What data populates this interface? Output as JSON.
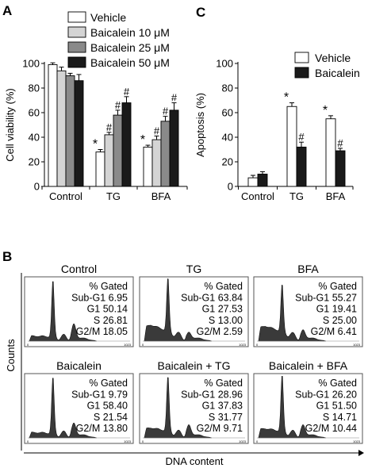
{
  "panels": {
    "a_letter": "A",
    "b_letter": "B",
    "c_letter": "C"
  },
  "chart_data": [
    {
      "id": "panel-a",
      "type": "bar",
      "ylabel": "Cell viability (%)",
      "xlabel": "",
      "ylim": [
        0,
        100
      ],
      "yticks": [
        0,
        20,
        40,
        60,
        80,
        100
      ],
      "categories": [
        "Control",
        "TG",
        "BFA"
      ],
      "legend_position": "top",
      "series": [
        {
          "name": "Vehicle",
          "color": "#ffffff",
          "values": [
            99,
            28,
            32
          ],
          "errors": [
            1.5,
            2,
            1.5
          ],
          "marks": [
            "",
            "*",
            "*"
          ]
        },
        {
          "name": "Baicalein 10 μM",
          "color": "#d4d4d4",
          "values": [
            94,
            42,
            38
          ],
          "errors": [
            3,
            2,
            3
          ],
          "marks": [
            "",
            "#",
            "#"
          ]
        },
        {
          "name": "Baicalein 25 μM",
          "color": "#8a8a8a",
          "values": [
            90,
            58,
            53
          ],
          "errors": [
            2,
            4,
            4
          ],
          "marks": [
            "",
            "#",
            "#"
          ]
        },
        {
          "name": "Baicalein 50 μM",
          "color": "#1a1a1a",
          "values": [
            86,
            68,
            62
          ],
          "errors": [
            5,
            5,
            6
          ],
          "marks": [
            "",
            "#",
            "#"
          ]
        }
      ]
    },
    {
      "id": "panel-c",
      "type": "bar",
      "ylabel": "Apoptosis (%)",
      "xlabel": "",
      "ylim": [
        0,
        100
      ],
      "yticks": [
        0,
        20,
        40,
        60,
        80,
        100
      ],
      "categories": [
        "Control",
        "TG",
        "BFA"
      ],
      "legend_position": "top-right",
      "series": [
        {
          "name": "Vehicle",
          "color": "#ffffff",
          "values": [
            7,
            65,
            55
          ],
          "errors": [
            2,
            3,
            2.5
          ],
          "marks": [
            "",
            "*",
            "*"
          ]
        },
        {
          "name": "Baicalein",
          "color": "#1a1a1a",
          "values": [
            10,
            32,
            29
          ],
          "errors": [
            2,
            4,
            2
          ],
          "marks": [
            "",
            "#",
            "#"
          ]
        }
      ]
    }
  ],
  "flow": {
    "ylabel": "Counts",
    "xlabel": "DNA content",
    "axis_tick_right": "1023",
    "axis_tick_left": "0",
    "gated_header": "% Gated",
    "histograms": [
      {
        "title": "Control",
        "subg1": "Sub-G1 6.95",
        "g1": "G1 50.14",
        "s": "S 26.81",
        "g2m": "G2/M 18.05",
        "g1_height": 0.95,
        "g2m_height": 0.22,
        "subg1_level": 0.04
      },
      {
        "title": "TG",
        "subg1": "Sub-G1 63.84",
        "g1": "G1 27.53",
        "s": "S 13.00",
        "g2m": "G2/M 2.59",
        "g1_height": 0.9,
        "g2m_height": 0.08,
        "subg1_level": 0.35
      },
      {
        "title": "BFA",
        "subg1": "Sub-G1 55.27",
        "g1": "G1 19.41",
        "s": "S 25.00",
        "g2m": "G2/M 6.41",
        "g1_height": 0.8,
        "g2m_height": 0.12,
        "subg1_level": 0.32
      },
      {
        "title": "Baicalein",
        "subg1": "Sub-G1 9.79",
        "g1": "G1 58.40",
        "s": "S 21.54",
        "g2m": "G2/M 13.80",
        "g1_height": 0.95,
        "g2m_height": 0.18,
        "subg1_level": 0.05
      },
      {
        "title": "Baicalein + TG",
        "subg1": "Sub-G1 28.96",
        "g1": "G1 37.83",
        "s": "S 31.77",
        "g2m": "G2/M 9.71",
        "g1_height": 0.92,
        "g2m_height": 0.15,
        "subg1_level": 0.18
      },
      {
        "title": "Baicalein + BFA",
        "subg1": "Sub-G1 26.20",
        "g1": "G1 51.50",
        "s": "S 14.71",
        "g2m": "G2/M 10.44",
        "g1_height": 0.95,
        "g2m_height": 0.15,
        "subg1_level": 0.16
      }
    ]
  }
}
